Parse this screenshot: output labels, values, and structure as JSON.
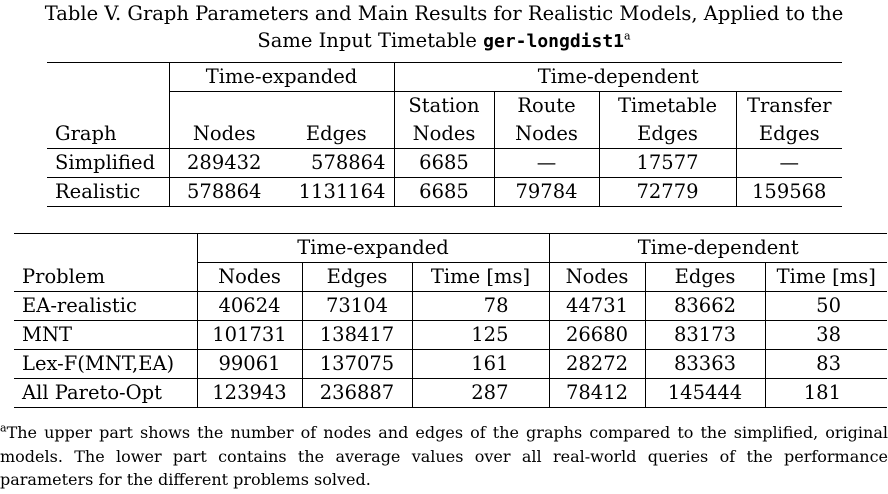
{
  "caption": {
    "line1": "Table V.  Graph Parameters and Main Results for Realistic Models, Applied to the",
    "line2_prefix": "Same Input Timetable ",
    "dataset": "ger-longdist1",
    "footnote_mark": "a"
  },
  "upper_table": {
    "group_time_expanded": "Time-expanded",
    "group_time_dependent": "Time-dependent",
    "col_graph": "Graph",
    "te_cols": [
      "Nodes",
      "Edges"
    ],
    "td_cols": [
      {
        "l1": "Station",
        "l2": "Nodes"
      },
      {
        "l1": "Route",
        "l2": "Nodes"
      },
      {
        "l1": "Timetable",
        "l2": "Edges"
      },
      {
        "l1": "Transfer",
        "l2": "Edges"
      }
    ],
    "rows": [
      {
        "graph": "Simplified",
        "te_nodes": "289432",
        "te_edges": "578864",
        "station_nodes": "6685",
        "route_nodes": "—",
        "timetable_edges": "17577",
        "transfer_edges": "—"
      },
      {
        "graph": "Realistic",
        "te_nodes": "578864",
        "te_edges": "1131164",
        "station_nodes": "6685",
        "route_nodes": "79784",
        "timetable_edges": "72779",
        "transfer_edges": "159568"
      }
    ]
  },
  "lower_table": {
    "group_time_expanded": "Time-expanded",
    "group_time_dependent": "Time-dependent",
    "col_problem": "Problem",
    "cols": [
      "Nodes",
      "Edges",
      "Time [ms]",
      "Nodes",
      "Edges",
      "Time [ms]"
    ],
    "rows": [
      {
        "problem": "EA-realistic",
        "te_nodes": "40624",
        "te_edges": "73104",
        "te_time": "78",
        "td_nodes": "44731",
        "td_edges": "83662",
        "td_time": "50"
      },
      {
        "problem": "MNT",
        "te_nodes": "101731",
        "te_edges": "138417",
        "te_time": "125",
        "td_nodes": "26680",
        "td_edges": "83173",
        "td_time": "38"
      },
      {
        "problem": "Lex-F(MNT,EA)",
        "te_nodes": "99061",
        "te_edges": "137075",
        "te_time": "161",
        "td_nodes": "28272",
        "td_edges": "83363",
        "td_time": "83"
      },
      {
        "problem": "All Pareto-Opt",
        "te_nodes": "123943",
        "te_edges": "236887",
        "te_time": "287",
        "td_nodes": "78412",
        "td_edges": "145444",
        "td_time": "181"
      }
    ]
  },
  "footnote": {
    "mark": "a",
    "text": "The upper part shows the number of nodes and edges of the graphs compared to the simplified, original models. The lower part contains the average values over all real-world queries of the performance parameters for the different problems solved."
  }
}
